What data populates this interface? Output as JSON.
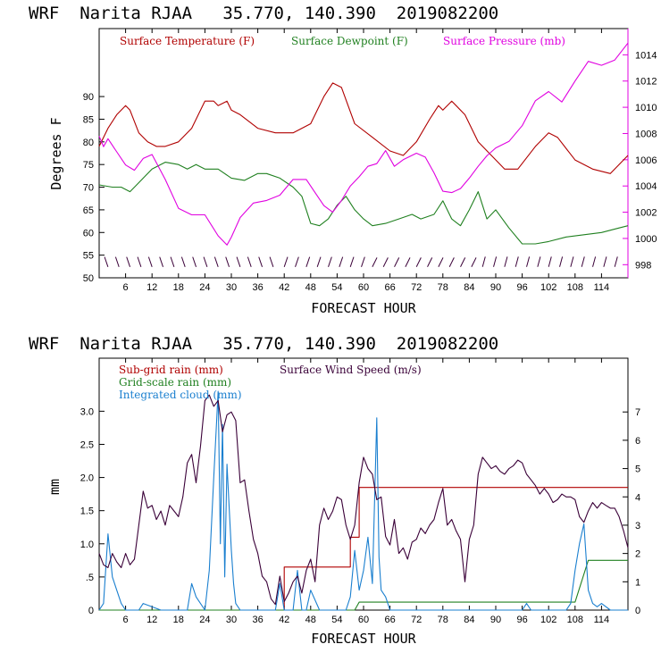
{
  "colors": {
    "temperature": "#b00000",
    "dewpoint": "#208020",
    "pressure": "#e000e0",
    "wind_speed": "#3a0038",
    "subgrid_rain": "#b00000",
    "gridscale_rain": "#208020",
    "cloud": "#1a7fcf",
    "barbs": "#3a0038"
  },
  "top_panel": {
    "header": "WRF  Narita RJAA   35.770, 140.390  2019082200",
    "xlabel": "FORECAST HOUR",
    "ylabel_left": "Degrees F",
    "legend": {
      "temperature": "Surface Temperature (F)",
      "dewpoint": "Surface Dewpoint (F)",
      "pressure": "Surface Pressure (mb)"
    }
  },
  "bottom_panel": {
    "header": "WRF  Narita RJAA   35.770, 140.390  2019082200",
    "xlabel": "FORECAST HOUR",
    "ylabel_left": "mm",
    "legend": {
      "subgrid": "Sub-grid rain (mm)",
      "wind": "Surface Wind Speed (m/s)",
      "gridscale": "Grid-scale rain (mm)",
      "cloud": "Integrated cloud (mm)"
    }
  },
  "chart_data": [
    {
      "type": "line",
      "title": "WRF Narita RJAA 35.770, 140.390 2019082200",
      "xlabel": "FORECAST HOUR",
      "ylabel": "Degrees F",
      "xlim": [
        0,
        120
      ],
      "ylim": [
        50,
        105
      ],
      "y2lim": [
        997,
        1016
      ],
      "x_ticks": [
        "6",
        "12",
        "18",
        "24",
        "30",
        "36",
        "42",
        "48",
        "54",
        "60",
        "66",
        "72",
        "78",
        "84",
        "90",
        "96",
        "102",
        "108",
        "114"
      ],
      "x_tick_values": [
        6,
        12,
        18,
        24,
        30,
        36,
        42,
        48,
        54,
        60,
        66,
        72,
        78,
        84,
        90,
        96,
        102,
        108,
        114
      ],
      "y_ticks": [
        "50",
        "55",
        "60",
        "65",
        "70",
        "75",
        "80",
        "85",
        "90"
      ],
      "y_tick_values": [
        50,
        55,
        60,
        65,
        70,
        75,
        80,
        85,
        90
      ],
      "y2_ticks": [
        "998",
        "1000",
        "1002",
        "1004",
        "1006",
        "1008",
        "1010",
        "1012",
        "1014"
      ],
      "y2_tick_values": [
        998,
        1000,
        1002,
        1004,
        1006,
        1008,
        1010,
        1012,
        1014
      ],
      "series": [
        {
          "name": "Surface Temperature (F)",
          "axis": "left",
          "x": [
            0,
            2,
            4,
            6,
            7,
            9,
            11,
            13,
            15,
            18,
            21,
            24,
            26,
            27,
            29,
            30,
            32,
            36,
            40,
            44,
            48,
            51,
            53,
            55,
            58,
            62,
            66,
            69,
            72,
            75,
            77,
            78,
            80,
            83,
            86,
            89,
            92,
            95,
            99,
            102,
            104,
            108,
            112,
            116,
            120
          ],
          "y": [
            79,
            83,
            86,
            88,
            87,
            82,
            80,
            79,
            79,
            80,
            83,
            89,
            89,
            88,
            89,
            87,
            86,
            83,
            82,
            82,
            84,
            90,
            93,
            92,
            84,
            81,
            78,
            77,
            80,
            85,
            88,
            87,
            89,
            86,
            80,
            77,
            74,
            74,
            79,
            82,
            81,
            76,
            74,
            73,
            77
          ]
        },
        {
          "name": "Surface Dewpoint (F)",
          "axis": "left",
          "x": [
            0,
            3,
            5,
            7,
            9,
            12,
            15,
            18,
            20,
            22,
            24,
            27,
            30,
            33,
            36,
            38,
            41,
            44,
            46,
            48,
            50,
            52,
            54,
            56,
            58,
            60,
            62,
            65,
            68,
            71,
            73,
            76,
            78,
            80,
            82,
            84,
            86,
            88,
            90,
            93,
            96,
            99,
            102,
            106,
            110,
            114,
            118,
            120
          ],
          "y": [
            70.5,
            70,
            70,
            69,
            71,
            74,
            75.5,
            75,
            74,
            75,
            74,
            74,
            72,
            71.5,
            73,
            73,
            72,
            70,
            68,
            62,
            61.5,
            63,
            66,
            68,
            65,
            63,
            61.5,
            62,
            63,
            64,
            63,
            64,
            67,
            63,
            61.5,
            65,
            69,
            63,
            65,
            61,
            57.5,
            57.5,
            58,
            59,
            59.5,
            60,
            61,
            61.5
          ]
        },
        {
          "name": "Surface Pressure (mb)",
          "axis": "right",
          "x": [
            0,
            1,
            2,
            4,
            6,
            8,
            10,
            12,
            15,
            18,
            21,
            24,
            27,
            29,
            30,
            32,
            35,
            38,
            41,
            44,
            47,
            49,
            51,
            53,
            55,
            57,
            59,
            61,
            63,
            65,
            67,
            69,
            72,
            74,
            76,
            78,
            80,
            82,
            84,
            86,
            88,
            90,
            93,
            96,
            99,
            102,
            105,
            108,
            111,
            114,
            117,
            120
          ],
          "y": [
            1007.8,
            1007,
            1007.6,
            1006.6,
            1005.6,
            1005.2,
            1006.1,
            1006.4,
            1004.5,
            1002.3,
            1001.8,
            1001.8,
            1000.2,
            999.5,
            1000.1,
            1001.6,
            1002.7,
            1002.9,
            1003.3,
            1004.5,
            1004.5,
            1003.5,
            1002.5,
            1002.0,
            1002.9,
            1004.0,
            1004.7,
            1005.5,
            1005.7,
            1006.7,
            1005.5,
            1006.0,
            1006.5,
            1006.2,
            1005.0,
            1003.6,
            1003.5,
            1003.8,
            1004.6,
            1005.5,
            1006.3,
            1006.9,
            1007.4,
            1008.6,
            1010.5,
            1011.2,
            1010.4,
            1012.0,
            1013.5,
            1013.2,
            1013.6,
            1014.9
          ]
        }
      ]
    },
    {
      "type": "line",
      "title": "WRF Narita RJAA 35.770, 140.390 2019082200",
      "xlabel": "FORECAST HOUR",
      "ylabel": "mm",
      "xlim": [
        0,
        120
      ],
      "ylim": [
        0,
        3.8
      ],
      "y2lim": [
        0,
        8.9
      ],
      "x_ticks": [
        "6",
        "12",
        "18",
        "24",
        "30",
        "36",
        "42",
        "48",
        "54",
        "60",
        "66",
        "72",
        "78",
        "84",
        "90",
        "96",
        "102",
        "108",
        "114"
      ],
      "x_tick_values": [
        6,
        12,
        18,
        24,
        30,
        36,
        42,
        48,
        54,
        60,
        66,
        72,
        78,
        84,
        90,
        96,
        102,
        108,
        114
      ],
      "y_ticks": [
        "0",
        ".5",
        "1.0",
        "1.5",
        "2.0",
        "2.5",
        "3.0"
      ],
      "y_tick_values": [
        0,
        0.5,
        1.0,
        1.5,
        2.0,
        2.5,
        3.0
      ],
      "y2_ticks": [
        "0",
        "1",
        "2",
        "3",
        "4",
        "5",
        "6",
        "7"
      ],
      "y2_tick_values": [
        0,
        1,
        2,
        3,
        4,
        5,
        6,
        7
      ],
      "series": [
        {
          "name": "Sub-grid rain (mm)",
          "axis": "left",
          "x": [
            0,
            42,
            42,
            57,
            57,
            59,
            59,
            120
          ],
          "y": [
            0,
            0,
            0.65,
            0.65,
            1.1,
            1.1,
            1.85,
            1.85
          ]
        },
        {
          "name": "Grid-scale rain (mm)",
          "axis": "left",
          "x": [
            0,
            58,
            59,
            108,
            111,
            120
          ],
          "y": [
            0,
            0,
            0.12,
            0.12,
            0.75,
            0.75
          ]
        },
        {
          "name": "Integrated cloud (mm)",
          "axis": "left",
          "x": [
            0,
            1,
            2,
            3,
            4,
            5,
            6,
            7,
            9,
            10,
            14,
            18,
            20,
            21,
            22,
            24,
            25,
            26,
            27,
            27.5,
            28,
            28.5,
            29,
            30,
            30.5,
            31,
            32,
            40,
            41,
            42,
            44,
            45,
            46,
            47,
            48,
            50,
            56,
            57,
            58,
            59,
            60,
            61,
            62,
            63,
            63.5,
            64,
            65,
            66,
            70,
            96,
            97,
            98,
            106,
            107,
            108,
            109,
            110,
            111,
            112,
            113,
            114,
            116,
            120
          ],
          "y": [
            0,
            0.1,
            1.15,
            0.5,
            0.3,
            0.1,
            0,
            0,
            0,
            0.1,
            0,
            0,
            0,
            0.4,
            0.2,
            0,
            0.6,
            2.0,
            3.3,
            1.0,
            2.8,
            0.5,
            2.2,
            0.9,
            0.4,
            0.1,
            0,
            0,
            0.4,
            0,
            0,
            0.6,
            0,
            0,
            0.3,
            0,
            0,
            0.2,
            0.9,
            0.3,
            0.6,
            1.1,
            0.4,
            2.9,
            0.8,
            0.3,
            0.2,
            0,
            0,
            0,
            0.1,
            0,
            0,
            0.1,
            0.6,
            1.0,
            1.3,
            0.3,
            0.1,
            0.05,
            0.1,
            0,
            0
          ]
        },
        {
          "name": "Surface Wind Speed (m/s)",
          "axis": "right",
          "x": [
            0,
            1,
            2,
            3,
            4,
            5,
            6,
            7,
            8,
            9,
            10,
            11,
            12,
            13,
            14,
            15,
            16,
            17,
            18,
            19,
            20,
            21,
            22,
            23,
            24,
            25,
            26,
            27,
            28,
            29,
            30,
            31,
            32,
            33,
            34,
            35,
            36,
            37,
            38,
            39,
            40,
            41,
            42,
            43,
            44,
            45,
            46,
            47,
            48,
            49,
            50,
            51,
            52,
            53,
            54,
            55,
            56,
            57,
            58,
            59,
            60,
            61,
            62,
            63,
            64,
            65,
            66,
            67,
            68,
            69,
            70,
            71,
            72,
            73,
            74,
            75,
            76,
            77,
            78,
            79,
            80,
            81,
            82,
            83,
            84,
            85,
            86,
            87,
            88,
            89,
            90,
            91,
            92,
            93,
            94,
            95,
            96,
            97,
            98,
            99,
            100,
            101,
            102,
            103,
            104,
            105,
            106,
            107,
            108,
            109,
            110,
            111,
            112,
            113,
            114,
            115,
            116,
            117,
            118,
            119,
            120
          ],
          "y": [
            2.0,
            1.6,
            1.5,
            2.0,
            1.7,
            1.5,
            2.0,
            1.6,
            1.8,
            3.0,
            4.2,
            3.6,
            3.7,
            3.2,
            3.5,
            3.0,
            3.7,
            3.5,
            3.3,
            4.0,
            5.2,
            5.5,
            4.5,
            5.8,
            7.4,
            7.6,
            7.2,
            7.4,
            6.3,
            6.9,
            7.0,
            6.7,
            4.5,
            4.6,
            3.5,
            2.5,
            2.0,
            1.2,
            1.0,
            0.4,
            0.2,
            1.2,
            0.3,
            0.6,
            1.0,
            1.2,
            0.6,
            1.4,
            1.8,
            1.0,
            3.0,
            3.6,
            3.2,
            3.5,
            4.0,
            3.9,
            3.0,
            2.5,
            3.0,
            4.5,
            5.4,
            5.0,
            4.8,
            3.9,
            4.0,
            2.6,
            2.3,
            3.2,
            2.0,
            2.2,
            1.8,
            2.4,
            2.5,
            2.9,
            2.7,
            3.0,
            3.2,
            3.8,
            4.3,
            3.0,
            3.2,
            2.8,
            2.5,
            1.0,
            2.5,
            3.0,
            4.8,
            5.4,
            5.2,
            5.0,
            5.1,
            4.9,
            4.8,
            5.0,
            5.1,
            5.3,
            5.2,
            4.8,
            4.6,
            4.4,
            4.1,
            4.3,
            4.1,
            3.8,
            3.9,
            4.1,
            4.0,
            4.0,
            3.9,
            3.3,
            3.1,
            3.5,
            3.8,
            3.6,
            3.8,
            3.7,
            3.6,
            3.6,
            3.3,
            2.8,
            2.2
          ]
        }
      ]
    }
  ]
}
